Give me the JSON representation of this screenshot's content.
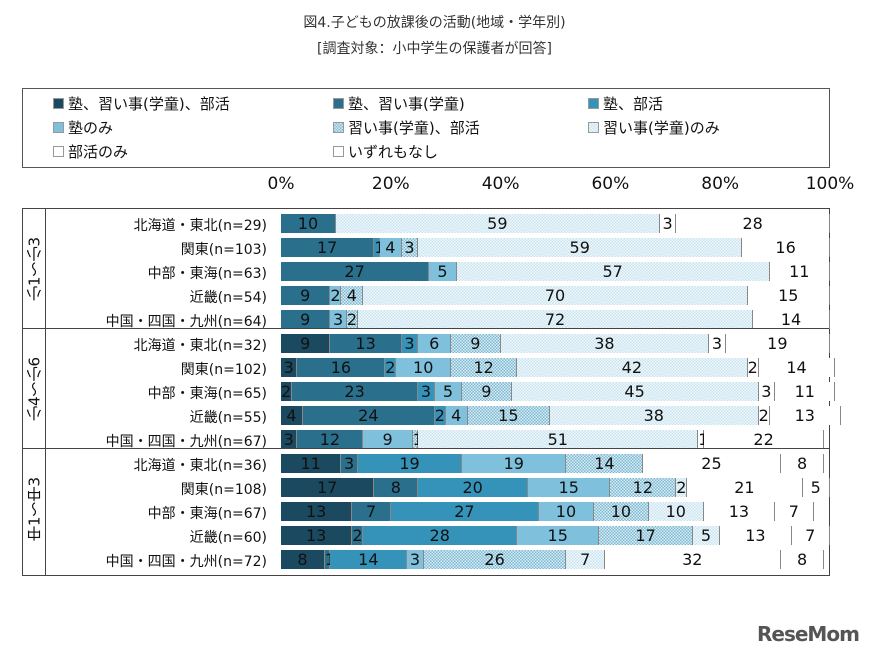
{
  "chart_data": {
    "type": "bar",
    "orientation": "horizontal",
    "stacked": "percent",
    "title": "図4.子どもの放課後の活動(地域・学年別)",
    "subtitle": "[調査対象：小中学生の保護者が回答]",
    "xlim": [
      0,
      100
    ],
    "ticks": [
      "0%",
      "20%",
      "40%",
      "60%",
      "80%",
      "100%"
    ],
    "legend": [
      "塾、習い事(学童)、部活",
      "塾、習い事(学童)",
      "塾、部活",
      "塾のみ",
      "習い事(学童)、部活",
      "習い事(学童)のみ",
      "部活のみ",
      "いずれもなし"
    ],
    "colors": [
      "#1b4a60",
      "#2a6f8c",
      "#3593b9",
      "#7fc0dc",
      "#a9d3e4",
      "#e6f3f9",
      "#ffffff",
      "#ffffff"
    ],
    "legend_placement": "top",
    "groups": [
      {
        "label": "小1～小3",
        "rows": [
          {
            "label": "北海道・東北(n=29)",
            "values": [
              0,
              10,
              0,
              0,
              0,
              59,
              3,
              28
            ]
          },
          {
            "label": "関東(n=103)",
            "values": [
              0,
              17,
              1,
              4,
              3,
              59,
              0,
              16
            ]
          },
          {
            "label": "中部・東海(n=63)",
            "values": [
              0,
              27,
              0,
              5,
              0,
              57,
              0,
              11
            ]
          },
          {
            "label": "近畿(n=54)",
            "values": [
              0,
              9,
              0,
              2,
              4,
              70,
              0,
              15
            ]
          },
          {
            "label": "中国・四国・九州(n=64)",
            "values": [
              0,
              9,
              0,
              3,
              2,
              72,
              0,
              14
            ]
          }
        ]
      },
      {
        "label": "小4～小6",
        "rows": [
          {
            "label": "北海道・東北(n=32)",
            "values": [
              9,
              13,
              3,
              6,
              9,
              38,
              3,
              19
            ]
          },
          {
            "label": "関東(n=102)",
            "values": [
              3,
              16,
              2,
              10,
              12,
              42,
              2,
              14
            ]
          },
          {
            "label": "中部・東海(n=65)",
            "values": [
              2,
              23,
              3,
              5,
              9,
              45,
              3,
              11
            ]
          },
          {
            "label": "近畿(n=55)",
            "values": [
              4,
              24,
              2,
              4,
              15,
              38,
              2,
              13
            ]
          },
          {
            "label": "中国・四国・九州(n=67)",
            "values": [
              3,
              12,
              0,
              9,
              1,
              51,
              1,
              22
            ]
          }
        ]
      },
      {
        "label": "中1～中3",
        "rows": [
          {
            "label": "北海道・東北(n=36)",
            "values": [
              11,
              3,
              19,
              19,
              14,
              0,
              25,
              8
            ]
          },
          {
            "label": "関東(n=108)",
            "values": [
              17,
              8,
              20,
              15,
              12,
              2,
              21,
              5
            ]
          },
          {
            "label": "中部・東海(n=67)",
            "values": [
              13,
              7,
              27,
              10,
              10,
              10,
              13,
              7
            ]
          },
          {
            "label": "近畿(n=60)",
            "values": [
              13,
              2,
              28,
              15,
              17,
              5,
              13,
              7
            ]
          },
          {
            "label": "中国・四国・九州(n=72)",
            "values": [
              8,
              1,
              14,
              3,
              26,
              7,
              32,
              8
            ]
          }
        ]
      }
    ]
  },
  "logo": "ReseMom"
}
